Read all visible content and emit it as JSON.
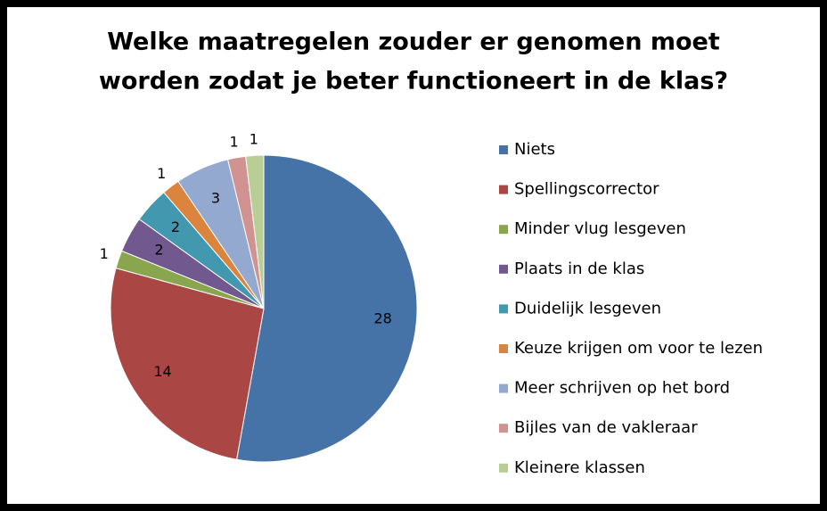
{
  "chart_data": {
    "type": "pie",
    "title": [
      "Welke maatregelen zouder er genomen moet",
      "worden zodat je beter functioneert in de klas?"
    ],
    "categories": [
      "Niets",
      "Spellingscorrector",
      "Minder vlug lesgeven",
      "Plaats in de klas",
      "Duidelijk lesgeven",
      "Keuze krijgen om voor te lezen",
      "Meer schrijven op het bord",
      "Bijles van de vakleraar",
      "Kleinere klassen"
    ],
    "values": [
      28,
      14,
      1,
      2,
      2,
      1,
      3,
      1,
      1
    ],
    "colors": [
      "#4572A7",
      "#AA4643",
      "#89A54E",
      "#71588F",
      "#4198AF",
      "#DB843D",
      "#93A9CF",
      "#D19392",
      "#B9CD96"
    ],
    "legend": "right"
  }
}
